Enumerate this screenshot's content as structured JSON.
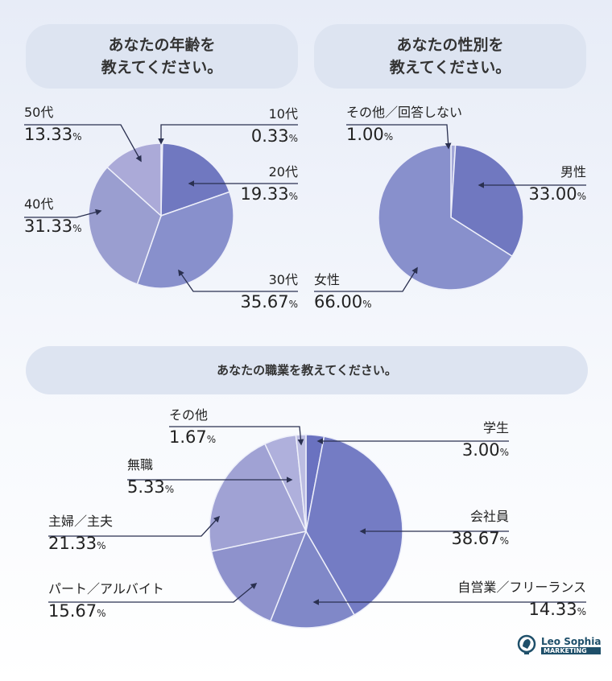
{
  "chart_data": [
    {
      "type": "pie",
      "title": "あなたの年齢を\n教えてください。",
      "categories": [
        "10代",
        "20代",
        "30代",
        "40代",
        "50代"
      ],
      "values": [
        0.33,
        19.33,
        35.67,
        31.33,
        13.33
      ],
      "unit": "%",
      "colors": [
        "#9aa0d4",
        "#7078c0",
        "#8890cc",
        "#9a9ed0",
        "#abaad8"
      ]
    },
    {
      "type": "pie",
      "title": "あなたの性別を\n教えてください。",
      "categories": [
        "その他／回答しない",
        "男性",
        "女性"
      ],
      "values": [
        1.0,
        33.0,
        66.0
      ],
      "unit": "%",
      "colors": [
        "#a4a8d8",
        "#7078c0",
        "#8890cc"
      ]
    },
    {
      "type": "pie",
      "title": "あなたの職業を教えてください。",
      "categories": [
        "学生",
        "会社員",
        "自営業／フリーランス",
        "パート／アルバイト",
        "主婦／主夫",
        "無職",
        "その他"
      ],
      "values": [
        3.0,
        38.67,
        14.33,
        15.67,
        21.33,
        5.33,
        1.67
      ],
      "unit": "%",
      "colors": [
        "#6a72c0",
        "#747cc4",
        "#8088c8",
        "#8e92cc",
        "#a0a2d4",
        "#afb0dc",
        "#bcbde2"
      ]
    }
  ],
  "logo": {
    "name": "Leo Sophia",
    "sub": "MARKETING"
  }
}
